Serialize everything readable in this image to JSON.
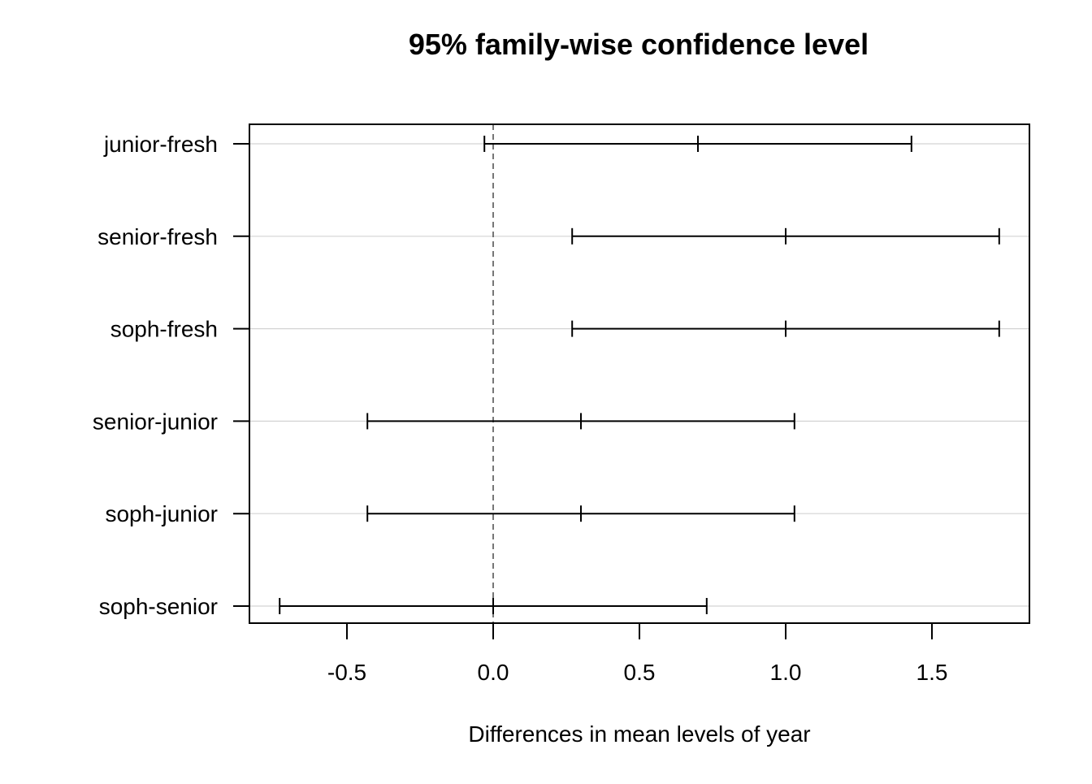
{
  "chart_data": {
    "type": "interval",
    "title": "95% family-wise confidence level",
    "xlabel": "Differences in mean levels of year",
    "ylabel": "",
    "xlim": [
      -0.83,
      1.83
    ],
    "xticks": [
      -0.5,
      0.0,
      0.5,
      1.0,
      1.5
    ],
    "xtick_labels": [
      "-0.5",
      "0.0",
      "0.5",
      "1.0",
      "1.5"
    ],
    "reference_line": 0,
    "grid": "horizontal",
    "comparisons": [
      {
        "label": "junior-fresh",
        "lwr": -0.03,
        "diff": 0.7,
        "upr": 1.43
      },
      {
        "label": "senior-fresh",
        "lwr": 0.27,
        "diff": 1.0,
        "upr": 1.73
      },
      {
        "label": "soph-fresh",
        "lwr": 0.27,
        "diff": 1.0,
        "upr": 1.73
      },
      {
        "label": "senior-junior",
        "lwr": -0.43,
        "diff": 0.3,
        "upr": 1.03
      },
      {
        "label": "soph-junior",
        "lwr": -0.43,
        "diff": 0.3,
        "upr": 1.03
      },
      {
        "label": "soph-senior",
        "lwr": -0.73,
        "diff": 0.0,
        "upr": 0.73
      }
    ],
    "colors": {
      "line": "#000000",
      "grid": "#d3d3d3",
      "reference": "#555555"
    }
  }
}
